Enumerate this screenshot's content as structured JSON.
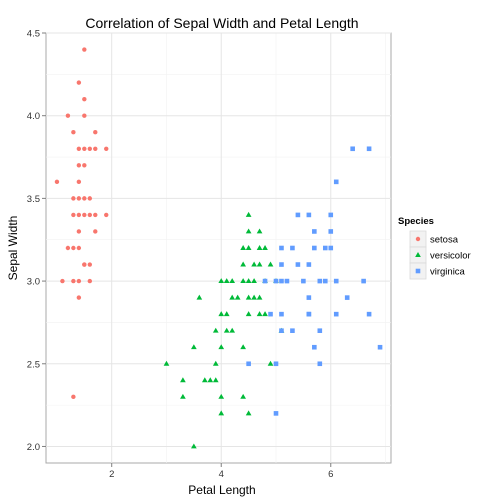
{
  "chart_data": {
    "type": "scatter",
    "title": "Correlation of Sepal Width and Petal Length",
    "xlabel": "Petal Length",
    "ylabel": "Sepal Width",
    "xlim": [
      0.8,
      7.1
    ],
    "ylim": [
      1.9,
      4.5
    ],
    "x_ticks": [
      2,
      4,
      6
    ],
    "y_ticks": [
      2.0,
      2.5,
      3.0,
      3.5,
      4.0,
      4.5
    ],
    "x_tick_labels": [
      "2",
      "4",
      "6"
    ],
    "y_tick_labels": [
      "2.0",
      "2.5",
      "3.0",
      "3.5",
      "4.0",
      "4.5"
    ],
    "grid": true,
    "legend": {
      "title": "Species",
      "position": "right"
    },
    "series": [
      {
        "name": "setosa",
        "marker": "circle",
        "color": "#F8766D",
        "points": [
          [
            1.5,
            4.4
          ],
          [
            1.4,
            4.2
          ],
          [
            1.5,
            4.1
          ],
          [
            1.5,
            4.0
          ],
          [
            1.2,
            4.0
          ],
          [
            1.3,
            3.9
          ],
          [
            1.7,
            3.9
          ],
          [
            1.4,
            3.8
          ],
          [
            1.5,
            3.8
          ],
          [
            1.6,
            3.8
          ],
          [
            1.7,
            3.8
          ],
          [
            1.9,
            3.8
          ],
          [
            1.4,
            3.7
          ],
          [
            1.5,
            3.7
          ],
          [
            1.4,
            3.6
          ],
          [
            1.0,
            3.6
          ],
          [
            1.3,
            3.5
          ],
          [
            1.4,
            3.5
          ],
          [
            1.5,
            3.5
          ],
          [
            1.6,
            3.5
          ],
          [
            1.3,
            3.4
          ],
          [
            1.4,
            3.4
          ],
          [
            1.5,
            3.4
          ],
          [
            1.6,
            3.4
          ],
          [
            1.7,
            3.4
          ],
          [
            1.9,
            3.4
          ],
          [
            1.4,
            3.3
          ],
          [
            1.7,
            3.3
          ],
          [
            1.2,
            3.2
          ],
          [
            1.3,
            3.2
          ],
          [
            1.4,
            3.2
          ],
          [
            1.5,
            3.1
          ],
          [
            1.6,
            3.1
          ],
          [
            1.5,
            3.1
          ],
          [
            1.4,
            3.0
          ],
          [
            1.1,
            3.0
          ],
          [
            1.3,
            3.0
          ],
          [
            1.6,
            3.0
          ],
          [
            1.4,
            2.9
          ],
          [
            1.3,
            2.3
          ]
        ]
      },
      {
        "name": "versicolor",
        "marker": "triangle",
        "color": "#00BA38",
        "points": [
          [
            4.5,
            3.4
          ],
          [
            4.5,
            3.3
          ],
          [
            4.7,
            3.3
          ],
          [
            4.4,
            3.2
          ],
          [
            4.5,
            3.2
          ],
          [
            4.7,
            3.2
          ],
          [
            4.8,
            3.2
          ],
          [
            4.4,
            3.1
          ],
          [
            4.6,
            3.1
          ],
          [
            4.7,
            3.1
          ],
          [
            4.9,
            3.1
          ],
          [
            4.0,
            3.0
          ],
          [
            4.1,
            3.0
          ],
          [
            4.2,
            3.0
          ],
          [
            4.4,
            3.0
          ],
          [
            4.5,
            3.0
          ],
          [
            4.6,
            3.0
          ],
          [
            4.8,
            3.0
          ],
          [
            5.0,
            3.0
          ],
          [
            3.6,
            2.9
          ],
          [
            4.2,
            2.9
          ],
          [
            4.3,
            2.9
          ],
          [
            4.5,
            2.9
          ],
          [
            4.6,
            2.9
          ],
          [
            4.7,
            2.9
          ],
          [
            4.0,
            2.8
          ],
          [
            4.1,
            2.8
          ],
          [
            4.5,
            2.8
          ],
          [
            4.7,
            2.8
          ],
          [
            4.8,
            2.8
          ],
          [
            3.9,
            2.7
          ],
          [
            4.1,
            2.7
          ],
          [
            4.2,
            2.7
          ],
          [
            5.1,
            2.7
          ],
          [
            3.5,
            2.6
          ],
          [
            4.0,
            2.6
          ],
          [
            4.4,
            2.6
          ],
          [
            3.0,
            2.5
          ],
          [
            3.9,
            2.5
          ],
          [
            4.9,
            2.5
          ],
          [
            3.3,
            2.4
          ],
          [
            3.7,
            2.4
          ],
          [
            3.8,
            2.4
          ],
          [
            3.9,
            2.4
          ],
          [
            3.3,
            2.3
          ],
          [
            4.0,
            2.3
          ],
          [
            4.4,
            2.3
          ],
          [
            4.0,
            2.2
          ],
          [
            4.5,
            2.2
          ],
          [
            3.5,
            2.0
          ]
        ]
      },
      {
        "name": "virginica",
        "marker": "square",
        "color": "#619CFF",
        "points": [
          [
            6.4,
            3.8
          ],
          [
            6.7,
            3.8
          ],
          [
            6.1,
            3.6
          ],
          [
            5.4,
            3.4
          ],
          [
            5.6,
            3.4
          ],
          [
            6.0,
            3.4
          ],
          [
            5.7,
            3.3
          ],
          [
            6.0,
            3.3
          ],
          [
            5.1,
            3.2
          ],
          [
            5.3,
            3.2
          ],
          [
            5.7,
            3.2
          ],
          [
            5.9,
            3.2
          ],
          [
            6.0,
            3.2
          ],
          [
            5.1,
            3.1
          ],
          [
            5.4,
            3.1
          ],
          [
            5.6,
            3.1
          ],
          [
            5.5,
            3.0
          ],
          [
            5.2,
            3.0
          ],
          [
            5.0,
            3.0
          ],
          [
            5.8,
            3.0
          ],
          [
            6.1,
            3.0
          ],
          [
            6.6,
            3.0
          ],
          [
            4.8,
            3.0
          ],
          [
            5.6,
            2.9
          ],
          [
            5.1,
            2.8
          ],
          [
            5.6,
            2.8
          ],
          [
            6.1,
            2.8
          ],
          [
            6.7,
            2.8
          ],
          [
            4.9,
            2.8
          ],
          [
            5.3,
            2.7
          ],
          [
            5.1,
            2.7
          ],
          [
            5.7,
            2.6
          ],
          [
            5.8,
            2.7
          ],
          [
            6.9,
            2.6
          ],
          [
            5.0,
            2.5
          ],
          [
            5.8,
            2.5
          ],
          [
            4.5,
            2.5
          ],
          [
            5.6,
            2.8
          ],
          [
            6.3,
            2.9
          ],
          [
            5.9,
            3.0
          ],
          [
            5.1,
            3.0
          ],
          [
            5.0,
            2.2
          ]
        ]
      }
    ]
  }
}
